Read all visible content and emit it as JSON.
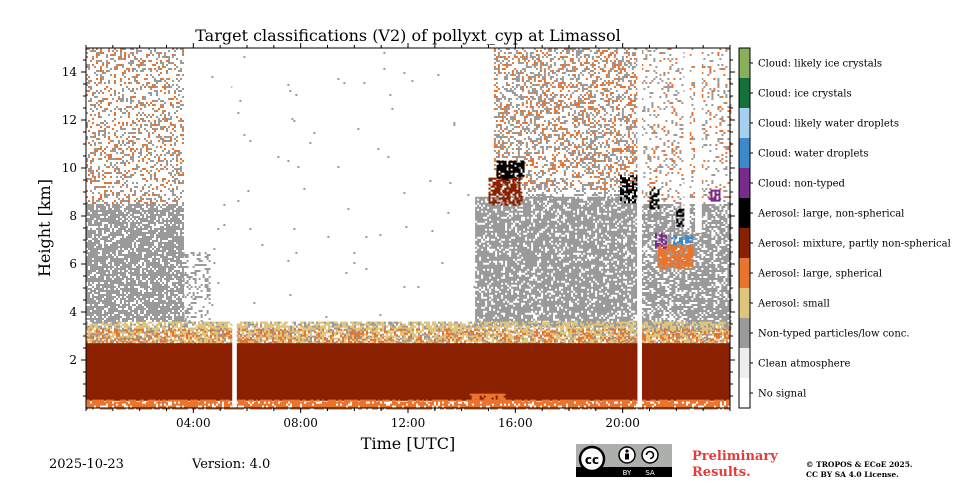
{
  "chart_data": {
    "type": "heatmap",
    "title": "Target classifications (V2) of pollyxt_cyp at Limassol",
    "xlabel": "Time [UTC]",
    "ylabel": "Height [km]",
    "xlim": [
      0,
      24
    ],
    "ylim": [
      0,
      15
    ],
    "x_ticks": [
      {
        "value": 4,
        "label": "04:00"
      },
      {
        "value": 8,
        "label": "08:00"
      },
      {
        "value": 12,
        "label": "12:00"
      },
      {
        "value": 16,
        "label": "16:00"
      },
      {
        "value": 20,
        "label": "20:00"
      }
    ],
    "y_ticks": [
      {
        "value": 2,
        "label": "2"
      },
      {
        "value": 4,
        "label": "4"
      },
      {
        "value": 6,
        "label": "6"
      },
      {
        "value": 8,
        "label": "8"
      },
      {
        "value": 10,
        "label": "10"
      },
      {
        "value": 12,
        "label": "12"
      },
      {
        "value": 14,
        "label": "14"
      }
    ],
    "classes": [
      {
        "label": "Cloud: likely ice crystals",
        "color": "#88b05a"
      },
      {
        "label": "Cloud: ice crystals",
        "color": "#13723a"
      },
      {
        "label": "Cloud: likely water droplets",
        "color": "#a6d0f0"
      },
      {
        "label": "Cloud: water droplets",
        "color": "#3d8acb"
      },
      {
        "label": "Cloud: non-typed",
        "color": "#7a2a8c"
      },
      {
        "label": "Aerosol: large, non-spherical",
        "color": "#000000"
      },
      {
        "label": "Aerosol: mixture, partly non-spherical",
        "color": "#8b2000"
      },
      {
        "label": "Aerosol: large, spherical",
        "color": "#e8742e"
      },
      {
        "label": "Aerosol: small",
        "color": "#e0c47a"
      },
      {
        "label": "Non-typed particles/low conc.",
        "color": "#9a9a9a"
      },
      {
        "label": "Clean atmosphere",
        "color": "#eeeeee"
      },
      {
        "label": "No signal",
        "color": "#ffffff"
      }
    ],
    "regions": [
      {
        "cls": 9,
        "t0": 0,
        "t1": 3.6,
        "h0": 3.6,
        "h1": 8.5,
        "density": 0.75
      },
      {
        "cls": 9,
        "t0": 0,
        "t1": 3.6,
        "h0": 8.5,
        "h1": 15,
        "density": 0.22
      },
      {
        "cls": 7,
        "t0": 0,
        "t1": 3.6,
        "h0": 8.5,
        "h1": 15,
        "density": 0.12
      },
      {
        "cls": 9,
        "t0": 3.6,
        "t1": 4.6,
        "h0": 3.6,
        "h1": 6.5,
        "density": 0.3
      },
      {
        "cls": 9,
        "t0": 4.6,
        "t1": 14.5,
        "h0": 3.7,
        "h1": 15,
        "density": 0.004
      },
      {
        "cls": 9,
        "t0": 14.5,
        "t1": 20.5,
        "h0": 3.4,
        "h1": 8.8,
        "density": 0.78
      },
      {
        "cls": 9,
        "t0": 15.2,
        "t1": 20.5,
        "h0": 8.8,
        "h1": 15,
        "density": 0.3
      },
      {
        "cls": 7,
        "t0": 15.2,
        "t1": 20.5,
        "h0": 9,
        "h1": 15,
        "density": 0.14
      },
      {
        "cls": 9,
        "t0": 20.7,
        "t1": 24,
        "h0": 3.2,
        "h1": 8.5,
        "density": 0.7
      },
      {
        "cls": 9,
        "t0": 20.7,
        "t1": 24,
        "h0": 8.5,
        "h1": 15,
        "density": 0.12
      },
      {
        "cls": 7,
        "t0": 20.7,
        "t1": 24,
        "h0": 8.5,
        "h1": 15,
        "density": 0.07
      },
      {
        "cls": 9,
        "t0": 0,
        "t1": 24,
        "h0": 2.6,
        "h1": 3.6,
        "density": 0.5
      },
      {
        "cls": 8,
        "t0": 0,
        "t1": 24,
        "h0": 2.6,
        "h1": 3.6,
        "density": 0.55
      },
      {
        "cls": 7,
        "t0": 0,
        "t1": 24,
        "h0": 2.5,
        "h1": 3.3,
        "density": 0.3
      },
      {
        "cls": 6,
        "t0": 0,
        "t1": 24,
        "h0": 0.3,
        "h1": 2.7,
        "density": 0.97
      },
      {
        "cls": 7,
        "t0": 0,
        "t1": 24,
        "h0": 0,
        "h1": 0.35,
        "density": 0.8
      },
      {
        "cls": 7,
        "t0": 14.3,
        "t1": 15.6,
        "h0": 0.2,
        "h1": 0.6,
        "density": 0.8
      },
      {
        "cls": 5,
        "t0": 15.3,
        "t1": 16.3,
        "h0": 9.5,
        "h1": 10.3,
        "density": 0.8
      },
      {
        "cls": 6,
        "t0": 15.0,
        "t1": 16.2,
        "h0": 8.5,
        "h1": 9.6,
        "density": 0.6
      },
      {
        "cls": 5,
        "t0": 19.9,
        "t1": 20.5,
        "h0": 8.6,
        "h1": 9.7,
        "density": 0.6
      },
      {
        "cls": 5,
        "t0": 21.0,
        "t1": 21.3,
        "h0": 8.3,
        "h1": 9.2,
        "density": 0.6
      },
      {
        "cls": 7,
        "t0": 21.3,
        "t1": 22.6,
        "h0": 5.8,
        "h1": 6.8,
        "density": 0.8
      },
      {
        "cls": 3,
        "t0": 21.8,
        "t1": 22.6,
        "h0": 6.8,
        "h1": 7.2,
        "density": 0.4
      },
      {
        "cls": 4,
        "t0": 21.2,
        "t1": 21.6,
        "h0": 6.7,
        "h1": 7.3,
        "density": 0.5
      },
      {
        "cls": 4,
        "t0": 23.2,
        "t1": 23.6,
        "h0": 8.6,
        "h1": 9.1,
        "density": 0.7
      },
      {
        "cls": 5,
        "t0": 22.0,
        "t1": 22.3,
        "h0": 7.6,
        "h1": 8.3,
        "density": 0.5
      }
    ],
    "gaps": [
      {
        "t0": 5.45,
        "t1": 5.62,
        "h0": 0,
        "h1": 15
      },
      {
        "t0": 20.55,
        "t1": 20.72,
        "h0": 0,
        "h1": 15
      },
      {
        "t0": 22.3,
        "t1": 22.5,
        "h0": 7.5,
        "h1": 15
      },
      {
        "t0": 22.7,
        "t1": 22.95,
        "h0": 7.3,
        "h1": 15
      }
    ]
  },
  "footer": {
    "date": "2025-10-23",
    "version": "Version: 4.0",
    "preliminary_line1": "Preliminary",
    "preliminary_line2": "Results.",
    "copyright_line1": "© TROPOS & ECoE 2025.",
    "copyright_line2": "CC BY SA 4.0 License.",
    "license_badge": {
      "cc": "cc",
      "by": "BY",
      "sa": "SA"
    }
  }
}
